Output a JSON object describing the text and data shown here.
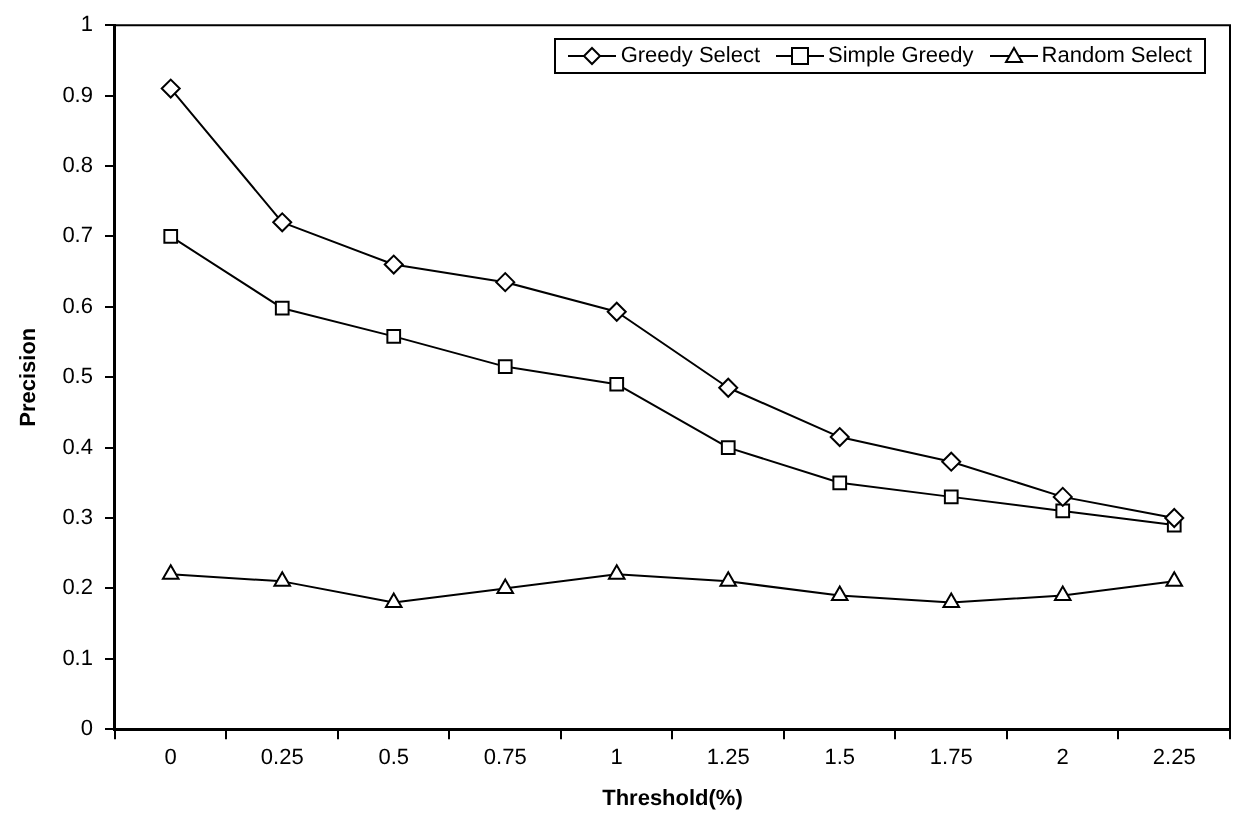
{
  "chart_data": {
    "type": "line",
    "xlabel": "Threshold(%)",
    "ylabel": "Precision",
    "categories": [
      "0",
      "0.25",
      "0.5",
      "0.75",
      "1",
      "1.25",
      "1.5",
      "1.75",
      "2",
      "2.25"
    ],
    "series": [
      {
        "name": "Greedy Select",
        "color": "#000000",
        "marker": "diamond",
        "values": [
          0.91,
          0.72,
          0.66,
          0.635,
          0.593,
          0.485,
          0.415,
          0.38,
          0.33,
          0.3
        ]
      },
      {
        "name": "Simple Greedy",
        "color": "#000000",
        "marker": "square",
        "values": [
          0.7,
          0.598,
          0.558,
          0.515,
          0.49,
          0.4,
          0.35,
          0.33,
          0.31,
          0.29
        ]
      },
      {
        "name": "Random Select",
        "color": "#000000",
        "marker": "triangle",
        "values": [
          0.22,
          0.21,
          0.18,
          0.2,
          0.22,
          0.21,
          0.19,
          0.18,
          0.19,
          0.21
        ]
      }
    ],
    "ylim": [
      0,
      1
    ],
    "yticks": [
      0,
      0.1,
      0.2,
      0.3,
      0.4,
      0.5,
      0.6,
      0.7,
      0.8,
      0.9,
      1
    ],
    "grid": false,
    "legend": "top right",
    "line_style": "solid"
  }
}
